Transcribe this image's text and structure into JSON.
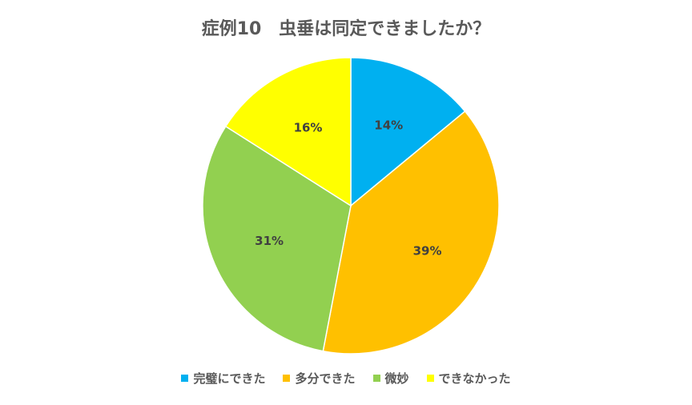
{
  "chart_data": {
    "type": "pie",
    "title": "症例10　虫垂は同定できましたか？",
    "categories": [
      "完璧にできた",
      "多分できた",
      "微妙",
      "できなかった"
    ],
    "values": [
      14,
      39,
      31,
      16
    ],
    "data_labels": [
      "14%",
      "39%",
      "31%",
      "16%"
    ],
    "colors": [
      "#00B0F0",
      "#FFC000",
      "#92D050",
      "#FFFF00"
    ],
    "legend_position": "bottom"
  }
}
